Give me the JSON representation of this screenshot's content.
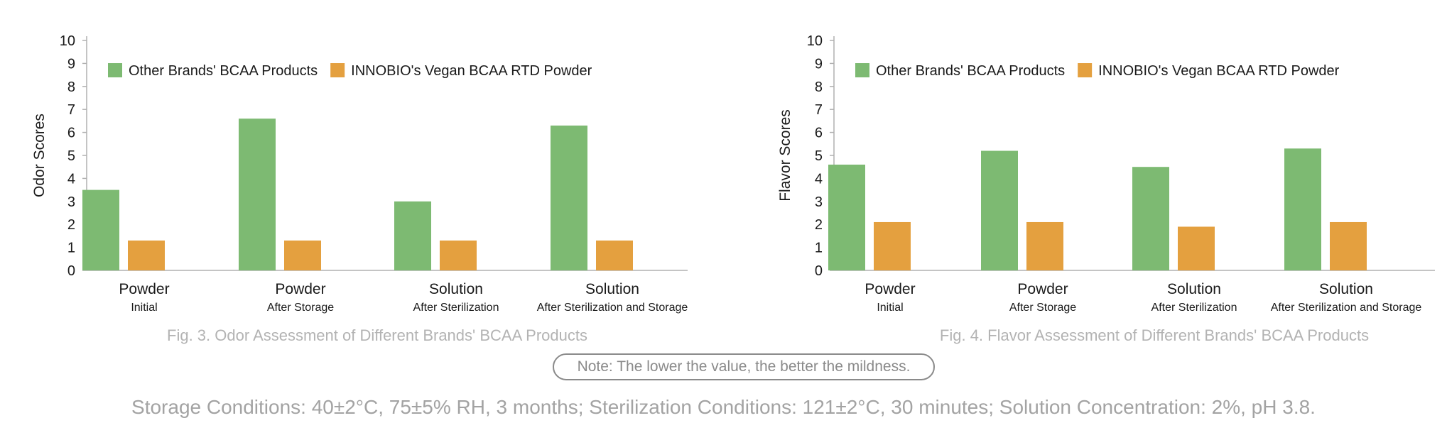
{
  "colors": {
    "series_other": "#7dba72",
    "series_innobio": "#e4a03f",
    "axis": "#b0b0b0",
    "text": "#1a1a1a",
    "caption": "#b3b3b3"
  },
  "chart_data": [
    {
      "type": "bar",
      "ylabel": "Odor Scores",
      "ylim": [
        0,
        10
      ],
      "yticks": [
        0,
        1,
        2,
        3,
        4,
        5,
        6,
        7,
        8,
        9,
        10
      ],
      "grid": false,
      "legend_position": "top-left",
      "categories": [
        {
          "main": "Powder",
          "sub": "Initial"
        },
        {
          "main": "Powder",
          "sub": "After Storage"
        },
        {
          "main": "Solution",
          "sub": "After Sterilization"
        },
        {
          "main": "Solution",
          "sub": "After Sterilization and Storage"
        }
      ],
      "series": [
        {
          "name": "Other Brands' BCAA Products",
          "values": [
            3.5,
            6.6,
            3.0,
            6.3
          ]
        },
        {
          "name": "INNOBIO's Vegan BCAA RTD Powder",
          "values": [
            1.3,
            1.3,
            1.3,
            1.3
          ]
        }
      ],
      "caption": "Fig. 3. Odor Assessment of Different Brands' BCAA Products"
    },
    {
      "type": "bar",
      "ylabel": "Flavor Scores",
      "ylim": [
        0,
        10
      ],
      "yticks": [
        0,
        1,
        2,
        3,
        4,
        5,
        6,
        7,
        8,
        9,
        10
      ],
      "grid": false,
      "legend_position": "top-left",
      "categories": [
        {
          "main": "Powder",
          "sub": "Initial"
        },
        {
          "main": "Powder",
          "sub": "After Storage"
        },
        {
          "main": "Solution",
          "sub": "After Sterilization"
        },
        {
          "main": "Solution",
          "sub": "After Sterilization and Storage"
        }
      ],
      "series": [
        {
          "name": "Other Brands' BCAA Products",
          "values": [
            4.6,
            5.2,
            4.5,
            5.3
          ]
        },
        {
          "name": "INNOBIO's Vegan BCAA RTD Powder",
          "values": [
            2.1,
            2.1,
            1.9,
            2.1
          ]
        }
      ],
      "caption": "Fig. 4. Flavor Assessment of Different Brands' BCAA Products"
    }
  ],
  "note": "Note: The lower the value, the better the mildness.",
  "conditions": "Storage Conditions: 40±2°C, 75±5% RH, 3 months; Sterilization Conditions: 121±2°C, 30 minutes; Solution Concentration: 2%, pH 3.8."
}
